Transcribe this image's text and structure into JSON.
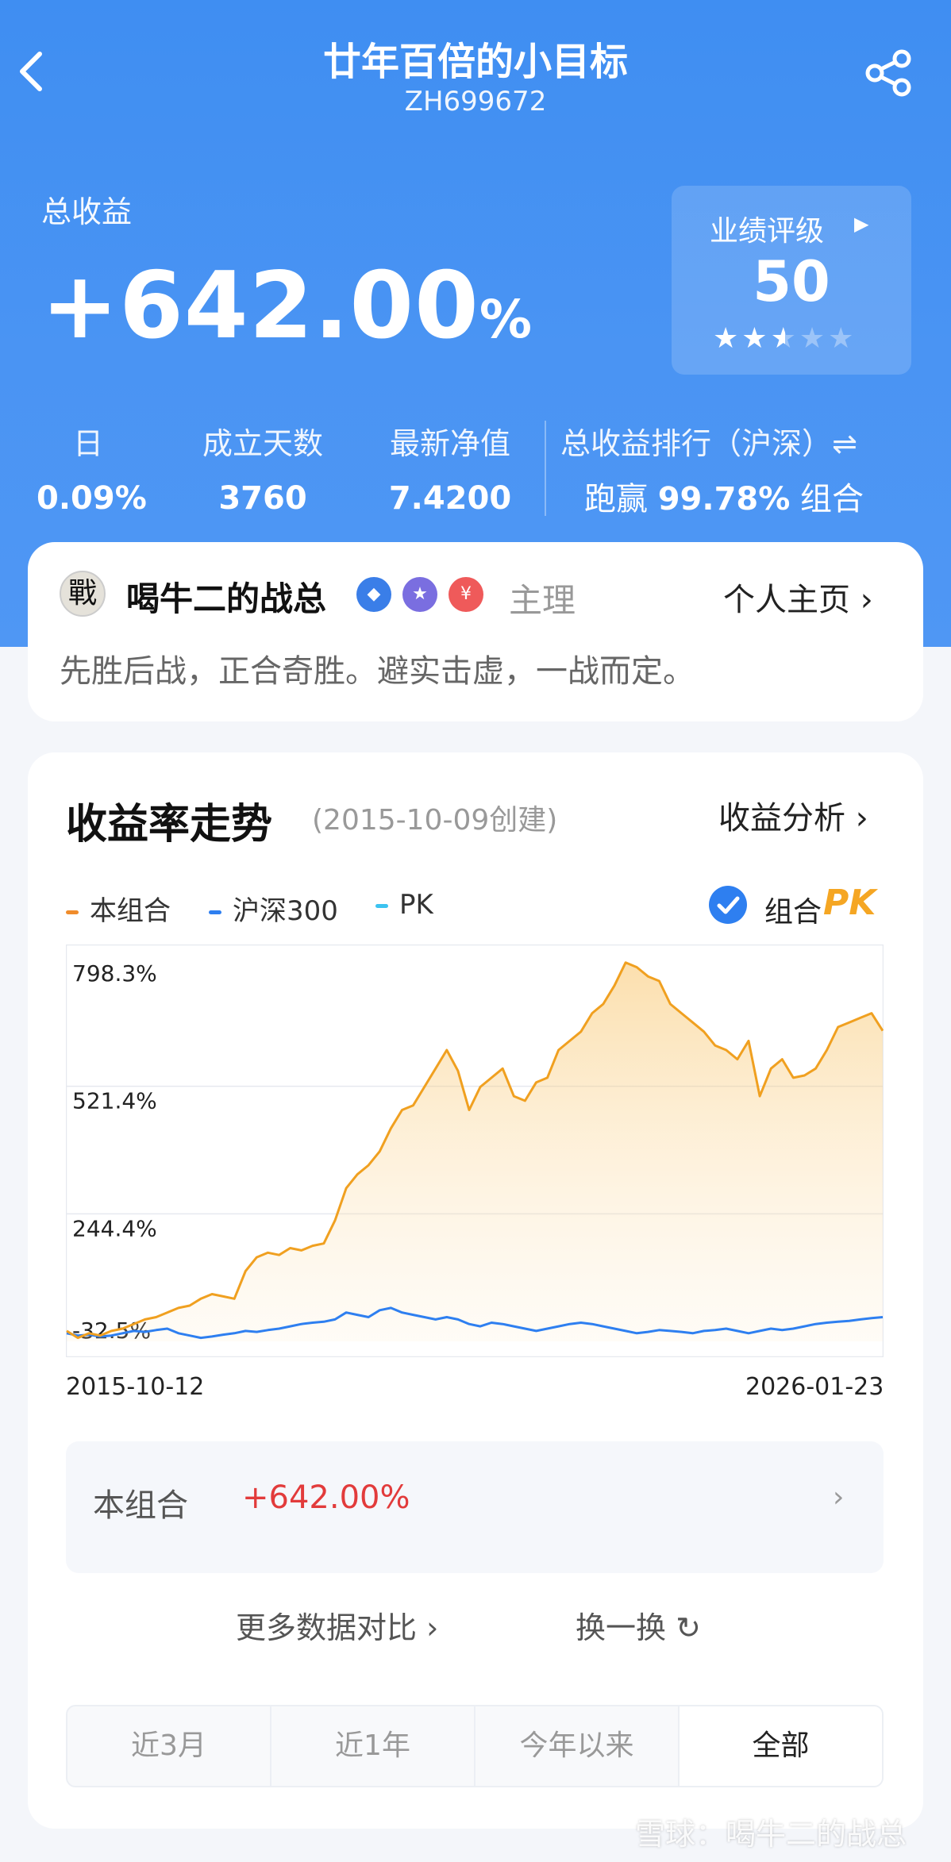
{
  "header": {
    "title": "廿年百倍的小目标",
    "code": "ZH699672",
    "back_icon": "chevron-left-icon",
    "share_icon": "share-icon"
  },
  "summary": {
    "total_label": "总收益",
    "total_value": "+642.00",
    "total_unit": "%",
    "rating_title": "业绩评级",
    "rating_score": "50",
    "rating_stars": 2.5,
    "stats": [
      {
        "label": "日",
        "value": "0.09%"
      },
      {
        "label": "成立天数",
        "value": "3760"
      },
      {
        "label": "最新净值",
        "value": "7.4200"
      }
    ],
    "rank_label": "总收益排行（沪深）⇌",
    "rank_prefix": "跑赢",
    "rank_value": "99.78%",
    "rank_suffix": "组合"
  },
  "manager": {
    "avatar_char": "戰",
    "name": "喝牛二的战总",
    "role": "主理",
    "home_link": "个人主页 ›",
    "motto": "先胜后战，正合奇胜。避实击虚，一战而定。",
    "badges": [
      "verified-badge-icon",
      "star-badge-icon",
      "yuan-badge-icon"
    ]
  },
  "trend": {
    "title": "收益率走势",
    "subtitle": "(2015-10-09创建)",
    "analysis_link": "收益分析 ›",
    "legend": [
      {
        "name": "本组合",
        "color": "#f08c2b"
      },
      {
        "name": "沪深300",
        "color": "#2e7ff0"
      },
      {
        "name": "PK",
        "color": "#3cc3f0"
      }
    ],
    "pk_toggle_label": "组合",
    "pk_word": "PK",
    "return_label": "本组合",
    "return_value": "+642.00%",
    "more_compare": "更多数据对比 ›",
    "swap": "换一换 ↻",
    "ranges": [
      "近3月",
      "近1年",
      "今年以来",
      "全部"
    ],
    "active_range": "全部"
  },
  "chart_data": {
    "type": "line",
    "x_start": "2015-10-12",
    "x_end": "2026-01-23",
    "ylim": [
      -32.5,
      798.3
    ],
    "ytick_labels": [
      "798.3%",
      "521.4%",
      "244.4%",
      "-32.5%"
    ],
    "yticks": [
      798.3,
      521.4,
      244.4,
      -32.5
    ],
    "series": [
      {
        "name": "本组合",
        "color": "#f0a020",
        "values": [
          -10,
          -25,
          -15,
          -20,
          -10,
          -5,
          5,
          15,
          20,
          30,
          40,
          45,
          60,
          70,
          65,
          60,
          120,
          150,
          160,
          155,
          170,
          165,
          175,
          180,
          230,
          300,
          330,
          350,
          380,
          430,
          470,
          480,
          520,
          560,
          600,
          555,
          470,
          520,
          540,
          560,
          500,
          490,
          530,
          540,
          600,
          620,
          640,
          680,
          700,
          740,
          790,
          780,
          760,
          750,
          700,
          680,
          660,
          640,
          610,
          600,
          580,
          620,
          500,
          560,
          580,
          540,
          545,
          560,
          600,
          650,
          660,
          670,
          680,
          642
        ]
      },
      {
        "name": "沪深300",
        "color": "#2e7ff0",
        "values": [
          -15,
          -20,
          -18,
          -22,
          -20,
          -15,
          -10,
          -12,
          -8,
          -5,
          -15,
          -20,
          -25,
          -22,
          -18,
          -15,
          -10,
          -12,
          -8,
          -5,
          0,
          5,
          8,
          10,
          15,
          30,
          25,
          20,
          35,
          40,
          30,
          25,
          20,
          15,
          20,
          15,
          5,
          0,
          8,
          5,
          0,
          -5,
          -10,
          -5,
          0,
          5,
          8,
          5,
          0,
          -5,
          -10,
          -15,
          -12,
          -8,
          -10,
          -12,
          -15,
          -10,
          -8,
          -5,
          -10,
          -15,
          -10,
          -5,
          -8,
          -5,
          0,
          5,
          8,
          10,
          12,
          15,
          18,
          20
        ]
      }
    ]
  },
  "watermark": "雪球：喝牛二的战总"
}
